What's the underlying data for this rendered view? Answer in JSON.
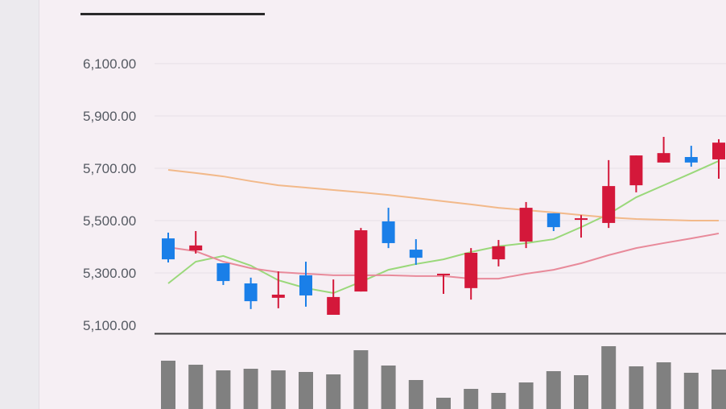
{
  "chart_data": {
    "type": "candlestick",
    "title": "",
    "xlabel": "",
    "ylabel": "",
    "ylim": [
      5100,
      6100
    ],
    "yticks": [
      "6,100.00",
      "5,900.00",
      "5,700.00",
      "5,500.00",
      "5,300.00",
      "5,100.00"
    ],
    "ytick_values": [
      6100,
      5900,
      5700,
      5500,
      5300,
      5100
    ],
    "grid": true,
    "colors": {
      "up": "#d4183a",
      "down": "#1a7fe8",
      "ma_short": "#9ad87a",
      "ma_mid": "#e88a9a",
      "ma_long": "#f2b98a",
      "volume": "#808080"
    },
    "candles": [
      {
        "open": 5432,
        "close": 5352,
        "high": 5454,
        "low": 5340
      },
      {
        "open": 5386,
        "close": 5405,
        "high": 5460,
        "low": 5374
      },
      {
        "open": 5337,
        "close": 5269,
        "high": 5337,
        "low": 5254
      },
      {
        "open": 5260,
        "close": 5192,
        "high": 5282,
        "low": 5162
      },
      {
        "open": 5205,
        "close": 5217,
        "high": 5306,
        "low": 5165
      },
      {
        "open": 5291,
        "close": 5214,
        "high": 5343,
        "low": 5171
      },
      {
        "open": 5140,
        "close": 5208,
        "high": 5275,
        "low": 5140
      },
      {
        "open": 5229,
        "close": 5463,
        "high": 5472,
        "low": 5229
      },
      {
        "open": 5497,
        "close": 5414,
        "high": 5549,
        "low": 5395
      },
      {
        "open": 5389,
        "close": 5358,
        "high": 5429,
        "low": 5331
      },
      {
        "open": 5291,
        "close": 5297,
        "high": 5297,
        "low": 5220
      },
      {
        "open": 5242,
        "close": 5377,
        "high": 5395,
        "low": 5198
      },
      {
        "open": 5352,
        "close": 5402,
        "high": 5426,
        "low": 5325
      },
      {
        "open": 5420,
        "close": 5549,
        "high": 5571,
        "low": 5395
      },
      {
        "open": 5528,
        "close": 5475,
        "high": 5528,
        "low": 5460
      },
      {
        "open": 5503,
        "close": 5509,
        "high": 5521,
        "low": 5435
      },
      {
        "open": 5491,
        "close": 5632,
        "high": 5731,
        "low": 5472
      },
      {
        "open": 5635,
        "close": 5749,
        "high": 5749,
        "low": 5608
      },
      {
        "open": 5722,
        "close": 5758,
        "high": 5820,
        "low": 5722
      },
      {
        "open": 5743,
        "close": 5722,
        "high": 5786,
        "low": 5706
      },
      {
        "open": 5734,
        "close": 5798,
        "high": 5811,
        "low": 5660
      }
    ],
    "moving_averages": [
      {
        "color": "#9ad87a",
        "values": [
          5260,
          5343,
          5365,
          5328,
          5272,
          5242,
          5223,
          5266,
          5312,
          5334,
          5352,
          5380,
          5402,
          5414,
          5429,
          5475,
          5525,
          5589,
          5635,
          5681,
          5728
        ]
      },
      {
        "color": "#e88a9a",
        "values": [
          5398,
          5383,
          5343,
          5318,
          5303,
          5297,
          5291,
          5291,
          5291,
          5288,
          5288,
          5278,
          5278,
          5297,
          5312,
          5337,
          5368,
          5395,
          5414,
          5432,
          5451
        ]
      },
      {
        "color": "#f2b98a",
        "values": [
          5694,
          5682,
          5669,
          5651,
          5635,
          5626,
          5617,
          5608,
          5598,
          5586,
          5574,
          5562,
          5549,
          5540,
          5531,
          5521,
          5512,
          5506,
          5503,
          5500,
          5500
        ]
      }
    ],
    "volume_relative": [
      72,
      67,
      60,
      62,
      60,
      58,
      55,
      85,
      66,
      48,
      26,
      37,
      32,
      45,
      59,
      54,
      90,
      65,
      70,
      57,
      61
    ]
  }
}
